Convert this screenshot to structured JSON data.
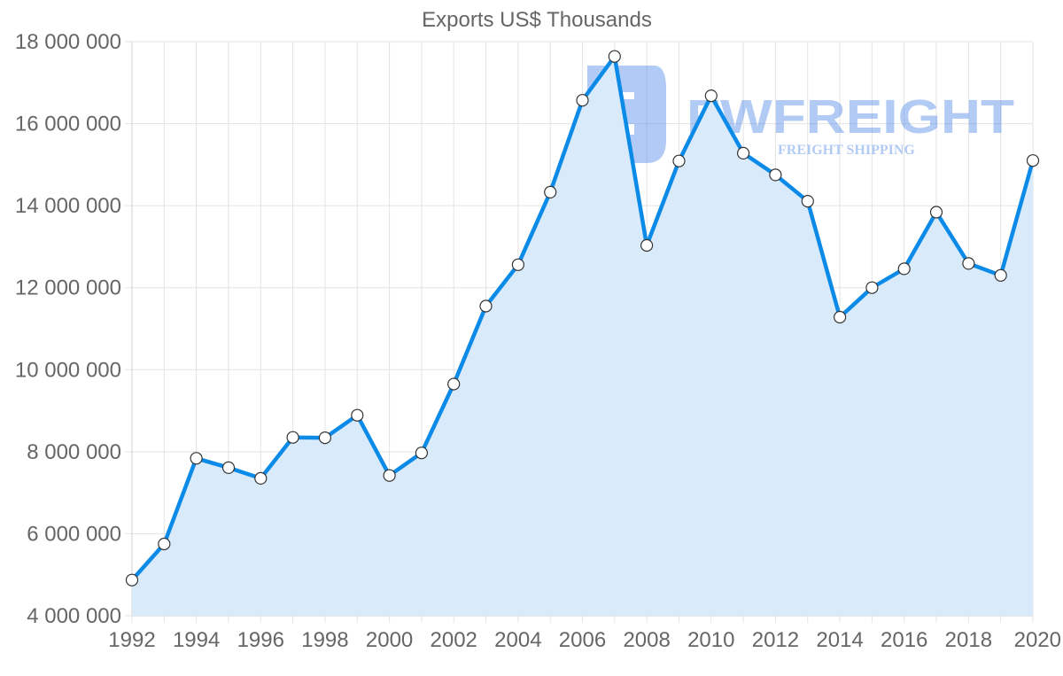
{
  "chart_data": {
    "type": "area",
    "title": "Exports US$ Thousands",
    "xlabel": "",
    "ylabel": "",
    "x": [
      1992,
      1993,
      1994,
      1995,
      1996,
      1997,
      1998,
      1999,
      2000,
      2001,
      2002,
      2003,
      2004,
      2005,
      2006,
      2007,
      2008,
      2009,
      2010,
      2011,
      2012,
      2013,
      2014,
      2015,
      2016,
      2017,
      2018,
      2019,
      2020
    ],
    "series": [
      {
        "name": "Exports US$ Thousands",
        "values": [
          4870000,
          5750000,
          7840000,
          7610000,
          7350000,
          8350000,
          8340000,
          8890000,
          7420000,
          7970000,
          9650000,
          11550000,
          12560000,
          14330000,
          16570000,
          17640000,
          13030000,
          15090000,
          16680000,
          15280000,
          14750000,
          14110000,
          11280000,
          12000000,
          12460000,
          13840000,
          12590000,
          12300000,
          15100000
        ],
        "line_color": "#0b8ae8",
        "fill_color": "#d9ebfb"
      }
    ],
    "xlim": [
      1992,
      2020
    ],
    "ylim": [
      4000000,
      18000000
    ],
    "x_ticks": [
      "1992",
      "1994",
      "1996",
      "1998",
      "2000",
      "2002",
      "2004",
      "2006",
      "2008",
      "2010",
      "2012",
      "2014",
      "2016",
      "2018",
      "2020"
    ],
    "y_ticks": [
      "4 000 000",
      "6 000 000",
      "8 000 000",
      "10 000 000",
      "12 000 000",
      "14 000 000",
      "16 000 000",
      "18 000 000"
    ],
    "grid": true,
    "legend": "none"
  },
  "watermark": {
    "brand": "FWFREIGHT",
    "tagline": "FREIGHT SHIPPING",
    "color": "#3f7ee8"
  }
}
